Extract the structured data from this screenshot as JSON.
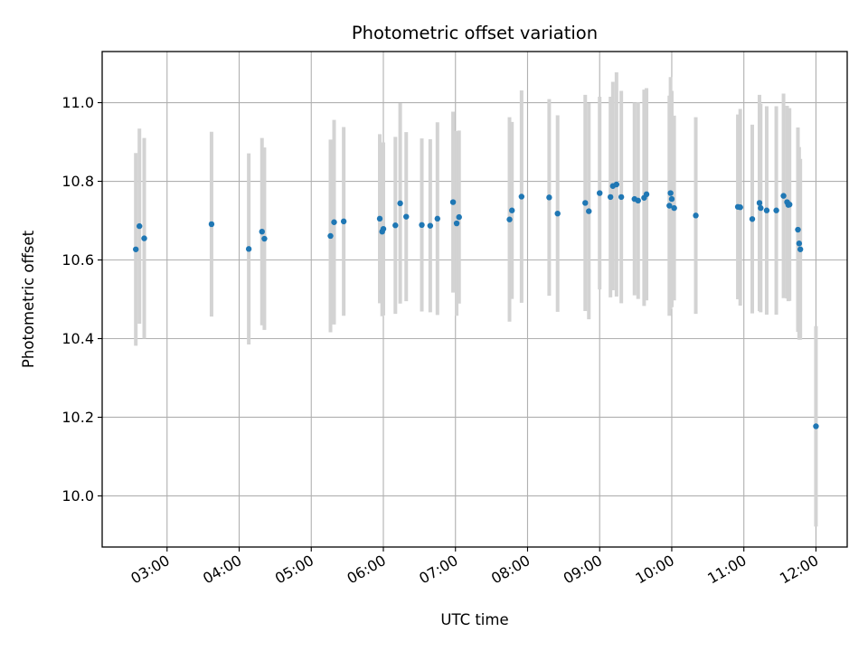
{
  "chart_data": {
    "type": "scatter",
    "title": "Photometric offset variation",
    "xlabel": "UTC time",
    "ylabel": "Photometric offset",
    "grid": true,
    "legend": "none",
    "x_tick_labels": [
      "03:00",
      "04:00",
      "05:00",
      "06:00",
      "07:00",
      "08:00",
      "09:00",
      "10:00",
      "11:00",
      "12:00"
    ],
    "y_tick_labels": [
      "10.0",
      "10.2",
      "10.4",
      "10.6",
      "10.8",
      "11.0"
    ],
    "y_ticks": [
      10.0,
      10.2,
      10.4,
      10.6,
      10.8,
      11.0
    ],
    "xlim": [
      "02:06",
      "12:26"
    ],
    "ylim": [
      9.87,
      11.13
    ],
    "marker_color": "#1f77b4",
    "errorbar_color": "#d3d3d3",
    "x": [
      "02:34",
      "02:37",
      "02:41",
      "03:37",
      "04:08",
      "04:19",
      "04:21",
      "05:16",
      "05:19",
      "05:27",
      "05:57",
      "05:59",
      "06:00",
      "06:10",
      "06:14",
      "06:19",
      "06:32",
      "06:39",
      "06:45",
      "06:58",
      "07:01",
      "07:03",
      "07:45",
      "07:47",
      "07:55",
      "08:18",
      "08:25",
      "08:48",
      "08:51",
      "09:00",
      "09:09",
      "09:11",
      "09:14",
      "09:18",
      "09:29",
      "09:32",
      "09:37",
      "09:39",
      "09:58",
      "09:59",
      "10:00",
      "10:02",
      "10:20",
      "10:55",
      "10:57",
      "11:07",
      "11:13",
      "11:14",
      "11:19",
      "11:27",
      "11:33",
      "11:36",
      "11:37",
      "11:38",
      "11:45",
      "11:46",
      "11:47",
      "12:00"
    ],
    "y": [
      10.627,
      10.686,
      10.655,
      10.691,
      10.628,
      10.672,
      10.654,
      10.661,
      10.696,
      10.698,
      10.705,
      10.672,
      10.679,
      10.688,
      10.744,
      10.71,
      10.689,
      10.687,
      10.705,
      10.747,
      10.693,
      10.709,
      10.703,
      10.726,
      10.761,
      10.759,
      10.718,
      10.745,
      10.724,
      10.77,
      10.76,
      10.788,
      10.792,
      10.76,
      10.755,
      10.751,
      10.758,
      10.767,
      10.738,
      10.77,
      10.755,
      10.732,
      10.713,
      10.735,
      10.734,
      10.704,
      10.745,
      10.732,
      10.726,
      10.726,
      10.763,
      10.747,
      10.74,
      10.741,
      10.677,
      10.642,
      10.627,
      10.177
    ],
    "err": [
      0.245,
      0.248,
      0.255,
      0.235,
      0.243,
      0.238,
      0.232,
      0.245,
      0.26,
      0.24,
      0.215,
      0.215,
      0.22,
      0.225,
      0.255,
      0.215,
      0.22,
      0.22,
      0.245,
      0.23,
      0.235,
      0.22,
      0.26,
      0.225,
      0.27,
      0.25,
      0.25,
      0.275,
      0.275,
      0.245,
      0.255,
      0.265,
      0.285,
      0.27,
      0.245,
      0.25,
      0.275,
      0.27,
      0.28,
      0.295,
      0.275,
      0.235,
      0.25,
      0.235,
      0.25,
      0.24,
      0.275,
      0.265,
      0.265,
      0.265,
      0.26,
      0.245,
      0.245,
      0.245,
      0.26,
      0.245,
      0.23,
      0.255
    ]
  }
}
